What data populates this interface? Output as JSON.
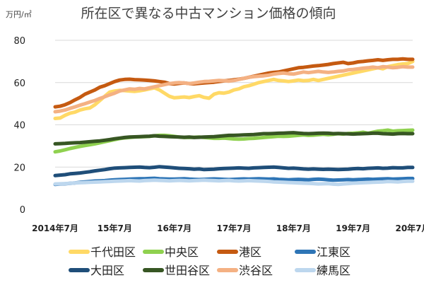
{
  "chart_data": {
    "type": "line",
    "title": "所在区で異なる中古マンション価格の傾向",
    "unit_label": "万円/㎡",
    "ylim": [
      0,
      80
    ],
    "yticks": [
      "0",
      "20",
      "40",
      "60",
      "80"
    ],
    "x": [
      2014.5,
      2014.583,
      2014.667,
      2014.75,
      2014.833,
      2014.917,
      2015.0,
      2015.083,
      2015.167,
      2015.25,
      2015.333,
      2015.417,
      2015.5,
      2015.583,
      2015.667,
      2015.75,
      2015.833,
      2015.917,
      2016.0,
      2016.083,
      2016.167,
      2016.25,
      2016.333,
      2016.417,
      2016.5,
      2016.583,
      2016.667,
      2016.75,
      2016.833,
      2016.917,
      2017.0,
      2017.083,
      2017.167,
      2017.25,
      2017.333,
      2017.417,
      2017.5,
      2017.583,
      2017.667,
      2017.75,
      2017.833,
      2017.917,
      2018.0,
      2018.083,
      2018.167,
      2018.25,
      2018.333,
      2018.417,
      2018.5,
      2018.583,
      2018.667,
      2018.75,
      2018.833,
      2018.917,
      2019.0,
      2019.083,
      2019.167,
      2019.25,
      2019.333,
      2019.417,
      2019.5,
      2019.583,
      2019.667,
      2019.75,
      2019.833,
      2019.917,
      2020.0,
      2020.083,
      2020.167,
      2020.25,
      2020.333,
      2020.417,
      2020.5
    ],
    "xticks": [
      {
        "label": "2014年7月",
        "x": 2014.5
      },
      {
        "label": "15年7月",
        "x": 2015.5
      },
      {
        "label": "16年7月",
        "x": 2016.5
      },
      {
        "label": "17年7月",
        "x": 2017.5
      },
      {
        "label": "18年7月",
        "x": 2018.5
      },
      {
        "label": "19年7月",
        "x": 2019.5
      },
      {
        "label": "20年7月",
        "x": 2020.5
      }
    ],
    "series": [
      {
        "name": "千代田区",
        "color": "#ffd966",
        "values": [
          43.0,
          43.2,
          44.5,
          45.5,
          46.0,
          47.0,
          47.6,
          48.0,
          49.5,
          51.5,
          53.5,
          55.5,
          56.0,
          56.3,
          56.2,
          56.0,
          55.8,
          56.1,
          56.5,
          57.0,
          57.5,
          56.5,
          55.0,
          53.5,
          52.8,
          53.0,
          53.2,
          52.9,
          53.4,
          53.8,
          53.0,
          52.6,
          54.5,
          55.2,
          55.0,
          55.5,
          56.5,
          57.0,
          58.0,
          58.5,
          59.2,
          60.0,
          60.5,
          61.0,
          61.5,
          61.0,
          60.8,
          60.5,
          60.8,
          61.2,
          60.9,
          61.0,
          61.5,
          61.0,
          61.5,
          62.0,
          62.5,
          63.0,
          63.5,
          64.0,
          64.5,
          65.0,
          65.5,
          66.0,
          66.5,
          67.0,
          66.5,
          67.5,
          68.0,
          68.5,
          68.8,
          69.0,
          70.0
        ]
      },
      {
        "name": "中央区",
        "color": "#8fd14f",
        "values": [
          27.2,
          27.6,
          28.2,
          28.8,
          29.3,
          29.8,
          30.2,
          30.6,
          31.0,
          31.5,
          32.0,
          32.5,
          33.0,
          33.5,
          33.8,
          34.0,
          34.2,
          34.3,
          34.4,
          34.5,
          34.8,
          35.0,
          35.0,
          34.8,
          34.5,
          34.2,
          34.0,
          34.0,
          34.1,
          34.2,
          34.0,
          33.8,
          33.6,
          33.6,
          33.7,
          33.5,
          33.3,
          33.2,
          33.3,
          33.5,
          33.6,
          33.8,
          34.0,
          34.2,
          34.4,
          34.6,
          34.5,
          34.6,
          34.8,
          35.0,
          35.2,
          35.0,
          35.1,
          35.3,
          35.5,
          35.3,
          35.5,
          35.8,
          35.6,
          35.9,
          36.0,
          36.2,
          36.5,
          36.0,
          36.5,
          37.0,
          37.2,
          37.5,
          37.0,
          37.2,
          37.3,
          37.4,
          37.5
        ]
      },
      {
        "name": "港区",
        "color": "#c55a11",
        "values": [
          48.5,
          48.8,
          49.5,
          50.5,
          51.8,
          53.0,
          54.5,
          55.5,
          56.5,
          57.8,
          58.5,
          59.5,
          60.5,
          61.2,
          61.5,
          61.6,
          61.4,
          61.3,
          61.2,
          61.0,
          60.8,
          60.5,
          60.2,
          59.5,
          59.3,
          59.6,
          59.8,
          59.5,
          59.4,
          59.6,
          59.8,
          60.0,
          60.2,
          60.5,
          60.8,
          61.0,
          61.3,
          61.6,
          62.0,
          62.5,
          63.0,
          63.5,
          64.0,
          64.5,
          64.8,
          65.0,
          65.5,
          66.0,
          66.5,
          67.0,
          67.2,
          67.5,
          67.8,
          68.0,
          68.3,
          68.6,
          69.0,
          69.3,
          69.6,
          69.0,
          69.3,
          69.8,
          70.0,
          70.3,
          70.5,
          70.8,
          70.5,
          70.8,
          71.0,
          71.0,
          71.2,
          71.0,
          71.0
        ]
      },
      {
        "name": "江東区",
        "color": "#2e75b6",
        "values": [
          11.8,
          12.0,
          12.1,
          12.3,
          12.5,
          12.8,
          13.0,
          13.2,
          13.4,
          13.5,
          13.6,
          13.8,
          14.0,
          14.1,
          14.2,
          14.3,
          14.4,
          14.5,
          14.5,
          14.6,
          14.7,
          14.5,
          14.4,
          14.3,
          14.3,
          14.4,
          14.5,
          14.3,
          14.2,
          14.1,
          14.2,
          14.3,
          14.4,
          14.3,
          14.2,
          14.1,
          14.2,
          14.3,
          14.4,
          14.3,
          14.4,
          14.5,
          14.4,
          14.3,
          14.4,
          14.2,
          14.1,
          14.0,
          14.1,
          14.2,
          14.1,
          14.0,
          14.2,
          14.3,
          14.2,
          14.0,
          13.8,
          13.9,
          14.0,
          14.1,
          14.0,
          14.1,
          14.2,
          14.3,
          14.2,
          14.3,
          14.4,
          14.5,
          14.3,
          14.4,
          14.5,
          14.6,
          14.6
        ]
      },
      {
        "name": "大田区",
        "color": "#1f4e79",
        "values": [
          16.0,
          16.2,
          16.4,
          16.8,
          17.0,
          17.2,
          17.5,
          17.8,
          18.2,
          18.5,
          18.8,
          19.2,
          19.5,
          19.6,
          19.7,
          19.8,
          19.9,
          20.0,
          19.8,
          19.7,
          19.9,
          20.2,
          20.0,
          19.8,
          19.6,
          19.4,
          19.3,
          19.2,
          19.0,
          19.1,
          18.8,
          18.9,
          19.0,
          19.2,
          19.3,
          19.4,
          19.5,
          19.6,
          19.5,
          19.4,
          19.6,
          19.7,
          19.8,
          19.9,
          20.0,
          19.8,
          19.6,
          19.4,
          19.5,
          19.3,
          19.1,
          19.0,
          19.1,
          19.0,
          18.9,
          19.0,
          18.9,
          18.8,
          18.9,
          19.0,
          19.2,
          19.3,
          19.2,
          19.4,
          19.5,
          19.6,
          19.4,
          19.5,
          19.7,
          19.6,
          19.6,
          19.8,
          19.8
        ]
      },
      {
        "name": "世田谷区",
        "color": "#375623",
        "values": [
          31.0,
          31.1,
          31.2,
          31.4,
          31.5,
          31.6,
          31.8,
          32.0,
          32.2,
          32.4,
          32.7,
          33.0,
          33.4,
          33.7,
          34.0,
          34.2,
          34.3,
          34.4,
          34.5,
          34.6,
          34.8,
          34.6,
          34.5,
          34.4,
          34.3,
          34.2,
          34.1,
          34.2,
          34.0,
          34.1,
          34.2,
          34.3,
          34.4,
          34.6,
          34.8,
          35.0,
          35.0,
          35.1,
          35.2,
          35.3,
          35.4,
          35.6,
          35.8,
          35.8,
          35.9,
          36.0,
          36.1,
          36.2,
          36.3,
          36.1,
          35.9,
          35.8,
          35.9,
          36.0,
          36.1,
          36.0,
          35.8,
          35.9,
          35.8,
          35.7,
          35.6,
          35.7,
          35.8,
          35.9,
          36.0,
          36.0,
          35.8,
          35.7,
          35.6,
          35.8,
          35.9,
          35.8,
          35.8
        ]
      },
      {
        "name": "渋谷区",
        "color": "#f4b183",
        "values": [
          46.2,
          46.5,
          47.0,
          47.8,
          48.5,
          49.3,
          50.0,
          50.8,
          51.5,
          52.5,
          53.3,
          54.2,
          55.0,
          56.0,
          56.5,
          57.0,
          56.8,
          57.2,
          57.0,
          57.5,
          58.0,
          58.5,
          59.0,
          59.5,
          59.8,
          60.0,
          59.8,
          59.5,
          59.8,
          60.2,
          60.5,
          60.6,
          60.8,
          61.0,
          60.9,
          60.7,
          61.0,
          61.5,
          62.0,
          62.5,
          62.8,
          63.0,
          63.2,
          63.5,
          64.0,
          64.3,
          64.5,
          64.2,
          64.0,
          64.5,
          65.0,
          64.7,
          65.0,
          65.3,
          65.0,
          64.8,
          65.0,
          65.3,
          65.5,
          66.0,
          66.2,
          66.5,
          66.8,
          67.0,
          67.3,
          67.0,
          67.5,
          67.3,
          67.0,
          67.2,
          67.5,
          67.3,
          67.3
        ]
      },
      {
        "name": "練馬区",
        "color": "#bdd7ee",
        "values": [
          12.0,
          12.1,
          12.2,
          12.3,
          12.5,
          12.6,
          12.7,
          12.8,
          12.9,
          13.0,
          13.1,
          13.2,
          13.3,
          13.4,
          13.5,
          13.6,
          13.5,
          13.4,
          13.6,
          13.7,
          13.8,
          13.7,
          13.6,
          13.5,
          13.6,
          13.7,
          13.6,
          13.5,
          13.6,
          13.7,
          13.8,
          13.7,
          13.6,
          13.5,
          13.6,
          13.7,
          13.5,
          13.4,
          13.5,
          13.6,
          13.5,
          13.4,
          13.3,
          13.2,
          13.0,
          12.9,
          12.8,
          12.7,
          12.6,
          12.5,
          12.4,
          12.3,
          12.2,
          12.0,
          12.1,
          12.2,
          11.9,
          11.8,
          12.0,
          12.2,
          12.4,
          12.5,
          12.6,
          12.7,
          12.8,
          12.9,
          13.0,
          13.2,
          13.1,
          13.0,
          13.2,
          13.3,
          13.3
        ]
      }
    ],
    "legend_placement": "bottom",
    "grid": true
  }
}
